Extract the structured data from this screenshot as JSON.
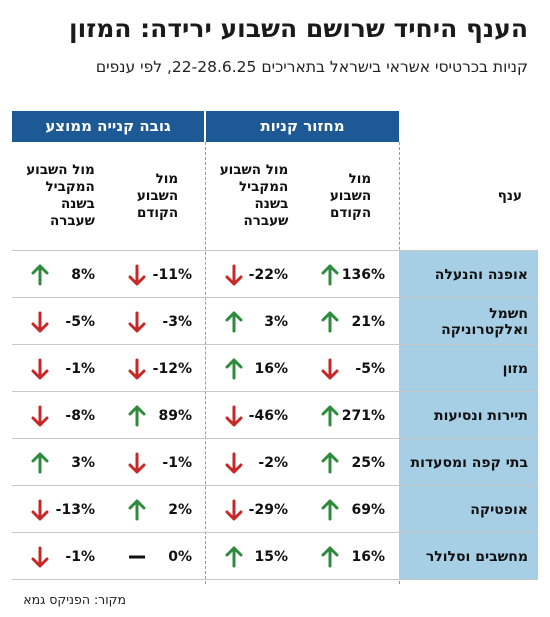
{
  "title": "הענף היחיד שרושם השבוע ירידה: המזון",
  "subtitle": "קניות בכרטיסי אשראי בישראל בתאריכים 22-28.6.25, לפי ענפים",
  "source": "מקור: הפניקס גמא",
  "groups": {
    "volume": "מחזור קניות",
    "avg": "גובה קנייה ממוצע"
  },
  "headers": {
    "sector": "ענף",
    "vol_prev_week": "מול\nהשבוע\nהקודם",
    "vol_last_year": "מול השבוע\nהמקביל\nבשנה\nשעברה",
    "avg_prev_week": "מול\nהשבוע\nהקודם",
    "avg_last_year": "מול השבוע\nהמקביל\nבשנה\nשעברה"
  },
  "colors": {
    "header_blue": "#1d5a95",
    "sector_bg": "#a6cfe6",
    "up_green": "#2e8b3e",
    "down_red": "#c62828",
    "flat_black": "#111111"
  },
  "chart_data": {
    "type": "table",
    "columns": [
      "ענף",
      "מחזור קניות – מול השבוע הקודם",
      "מחזור קניות – מול השבוע המקביל בשנה שעברה",
      "גובה קנייה ממוצע – מול השבוע הקודם",
      "גובה קנייה ממוצע – מול השבוע המקביל בשנה שעברה"
    ],
    "rows": [
      {
        "sector": "אופנה והנעלה",
        "vol_prev_week": "136%",
        "vol_last_year": "-22%",
        "avg_prev_week": "-11%",
        "avg_last_year": "8%",
        "dir": [
          "up",
          "down",
          "down",
          "up"
        ]
      },
      {
        "sector": "חשמל ואלקטרוניקה",
        "vol_prev_week": "21%",
        "vol_last_year": "3%",
        "avg_prev_week": "-3%",
        "avg_last_year": "-5%",
        "dir": [
          "up",
          "up",
          "down",
          "down"
        ]
      },
      {
        "sector": "מזון",
        "vol_prev_week": "-5%",
        "vol_last_year": "16%",
        "avg_prev_week": "-12%",
        "avg_last_year": "-1%",
        "dir": [
          "down",
          "up",
          "down",
          "down"
        ]
      },
      {
        "sector": "תיירות ונסיעות",
        "vol_prev_week": "271%",
        "vol_last_year": "-46%",
        "avg_prev_week": "89%",
        "avg_last_year": "-8%",
        "dir": [
          "up",
          "down",
          "up",
          "down"
        ]
      },
      {
        "sector": "בתי קפה ומסעדות",
        "vol_prev_week": "25%",
        "vol_last_year": "-2%",
        "avg_prev_week": "-1%",
        "avg_last_year": "3%",
        "dir": [
          "up",
          "down",
          "down",
          "up"
        ]
      },
      {
        "sector": "אופטיקה",
        "vol_prev_week": "69%",
        "vol_last_year": "-29%",
        "avg_prev_week": "2%",
        "avg_last_year": "-13%",
        "dir": [
          "up",
          "down",
          "up",
          "down"
        ]
      },
      {
        "sector": "מחשבים וסלולר",
        "vol_prev_week": "16%",
        "vol_last_year": "15%",
        "avg_prev_week": "0%",
        "avg_last_year": "-1%",
        "dir": [
          "up",
          "up",
          "flat",
          "down"
        ]
      }
    ]
  }
}
